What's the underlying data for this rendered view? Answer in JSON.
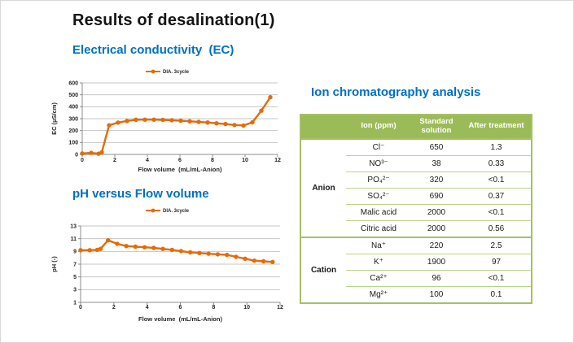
{
  "slide": {
    "title": "Results of desalination(1)"
  },
  "ec_chart": {
    "heading": "Electrical conductivity  (EC)"
  },
  "ph_chart": {
    "heading": "pH versus Flow volume"
  },
  "ion_table": {
    "heading": "Ion chromatography analysis",
    "columns": [
      "Ion (ppm)",
      "Standard solution",
      "After treatment"
    ],
    "groups": [
      {
        "name": "Anion",
        "rows": [
          {
            "ion": "Cl⁻",
            "standard": "650",
            "after": "1.3"
          },
          {
            "ion": "NO³⁻",
            "standard": "38",
            "after": "0.33"
          },
          {
            "ion": "PO₄²⁻",
            "standard": "320",
            "after": "<0.1"
          },
          {
            "ion": "SO₄²⁻",
            "standard": "690",
            "after": "0.37"
          },
          {
            "ion": "Malic acid",
            "standard": "2000",
            "after": "<0.1"
          },
          {
            "ion": "Citric acid",
            "standard": "2000",
            "after": "0.56"
          }
        ]
      },
      {
        "name": "Cation",
        "rows": [
          {
            "ion": "Na⁺",
            "standard": "220",
            "after": "2.5"
          },
          {
            "ion": "K⁺",
            "standard": "1900",
            "after": "97"
          },
          {
            "ion": "Ca²⁺",
            "standard": "96",
            "after": "<0.1"
          },
          {
            "ion": "Mg²⁺",
            "standard": "100",
            "after": "0.1"
          }
        ]
      }
    ],
    "colors": {
      "header_bg": "#9BBB59",
      "outer_border": "#A5C064",
      "row_border": "#BBD388"
    }
  },
  "chart_data": [
    {
      "id": "ec",
      "type": "line",
      "title": "Electrical conductivity (EC)",
      "legend": "DIA. 3cycle",
      "color": "#E36C0A",
      "xlabel": "Flow volume  (mL/mL-Anion)",
      "ylabel": "EC (µS/cm)",
      "xlim": [
        0,
        12
      ],
      "xtick_step": 2,
      "ylim": [
        0,
        600
      ],
      "ytick_step": 100,
      "grid": "horizontal",
      "legend_position": "top-center",
      "x": [
        0,
        0.55,
        1.0,
        1.2,
        1.65,
        2.2,
        2.75,
        3.3,
        3.85,
        4.4,
        4.95,
        5.5,
        6.05,
        6.6,
        7.15,
        7.7,
        8.25,
        8.8,
        9.35,
        9.9,
        10.45,
        11.0,
        11.55
      ],
      "y": [
        8,
        13,
        6,
        18,
        245,
        267,
        281,
        291,
        292,
        292,
        290,
        287,
        283,
        278,
        273,
        268,
        261,
        255,
        247,
        243,
        269,
        367,
        480
      ]
    },
    {
      "id": "ph",
      "type": "line",
      "title": "pH versus Flow volume",
      "legend": "DIA. 3cycle",
      "color": "#E36C0A",
      "xlabel": "Flow volume  (mL/mL-Anion)",
      "ylabel": "pH (-)",
      "xlim": [
        0,
        12
      ],
      "xtick_step": 2,
      "ylim": [
        1,
        13
      ],
      "ytick_step": 2,
      "grid": "horizontal",
      "legend_position": "top-center",
      "x": [
        0,
        0.55,
        1.0,
        1.2,
        1.65,
        2.2,
        2.75,
        3.3,
        3.85,
        4.4,
        4.95,
        5.5,
        6.05,
        6.6,
        7.15,
        7.7,
        8.25,
        8.8,
        9.35,
        9.9,
        10.45,
        11.0,
        11.55
      ],
      "y": [
        9.2,
        9.2,
        9.25,
        9.4,
        10.75,
        10.2,
        9.85,
        9.75,
        9.65,
        9.55,
        9.4,
        9.25,
        9.05,
        8.85,
        8.75,
        8.65,
        8.55,
        8.45,
        8.15,
        7.85,
        7.55,
        7.45,
        7.35
      ]
    }
  ]
}
